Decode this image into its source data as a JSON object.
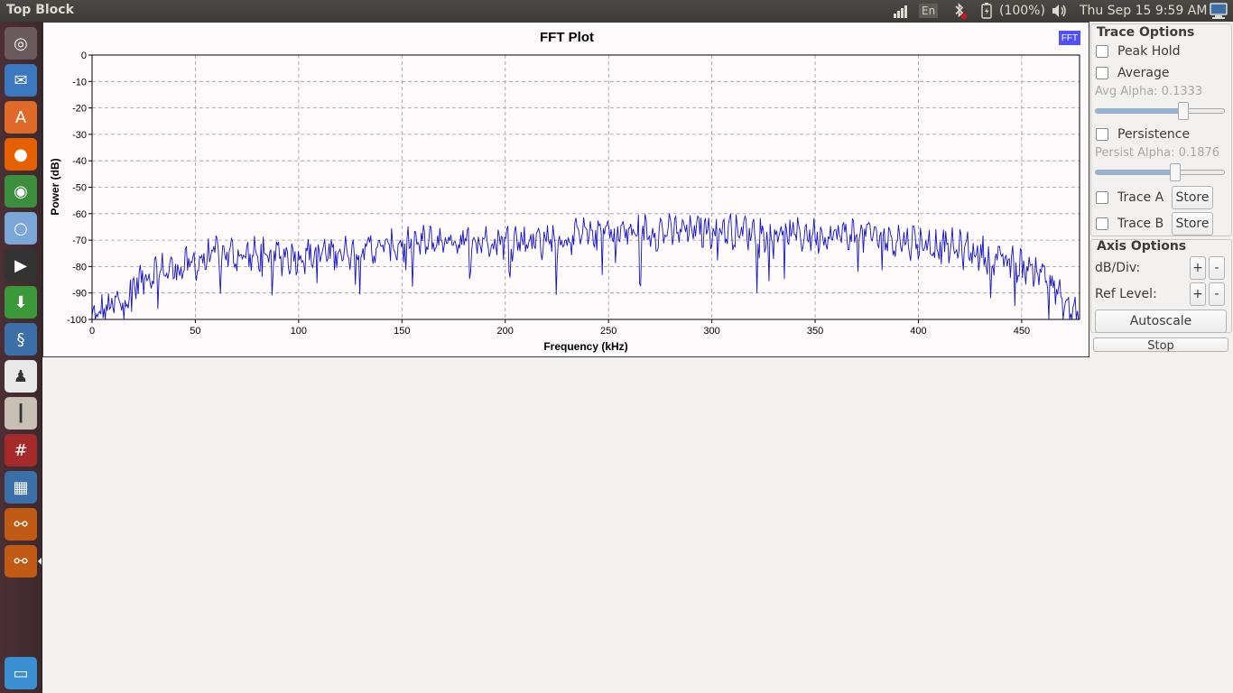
{
  "panel": {
    "window_title": "Top Block",
    "keyboard_layout": "En",
    "battery": "(100%)",
    "datetime": "Thu Sep 15  9:59 AM"
  },
  "launcher": {
    "items": [
      {
        "name": "dash-home",
        "icon": "ubuntu-logo-icon",
        "color": "#6b5a5d"
      },
      {
        "name": "thunderbird",
        "icon": "mail-icon",
        "color": "#3b78c0"
      },
      {
        "name": "software-center",
        "icon": "shopping-bag-icon",
        "color": "#e06a2a"
      },
      {
        "name": "firefox",
        "icon": "firefox-icon",
        "color": "#e66000"
      },
      {
        "name": "chrome",
        "icon": "chrome-icon",
        "color": "#3b8e3b"
      },
      {
        "name": "chromium",
        "icon": "chromium-icon",
        "color": "#7ba6d8"
      },
      {
        "name": "video-player",
        "icon": "video-icon",
        "color": "#333333"
      },
      {
        "name": "downloader",
        "icon": "download-icon",
        "color": "#3a9a3a"
      },
      {
        "name": "python",
        "icon": "python-icon",
        "color": "#3a6fa8"
      },
      {
        "name": "gnuradio",
        "icon": "penguin-icon",
        "color": "#e8e8e8"
      },
      {
        "name": "mixer",
        "icon": "mixer-icon",
        "color": "#c9c0b5"
      },
      {
        "name": "terminal",
        "icon": "terminal-icon",
        "color": "#a62a2a"
      },
      {
        "name": "calculator",
        "icon": "calculator-icon",
        "color": "#3a6fa8"
      },
      {
        "name": "gnuradio-companion-1",
        "icon": "flowgraph-icon",
        "color": "#c05a14"
      },
      {
        "name": "gnuradio-companion-2",
        "icon": "flowgraph-icon",
        "color": "#c05a14"
      },
      {
        "name": "trash",
        "icon": "trash-icon",
        "color": "#3a8fd0"
      }
    ]
  },
  "trace_options": {
    "title": "Trace Options",
    "peak_hold": "Peak Hold",
    "average": "Average",
    "avg_alpha": "Avg Alpha: 0.1333",
    "avg_alpha_value": 0.68,
    "persistence": "Persistence",
    "persist_alpha": "Persist Alpha: 0.1876",
    "persist_alpha_value": 0.62,
    "trace_a": "Trace A",
    "trace_b": "Trace B",
    "store": "Store"
  },
  "axis_options": {
    "title": "Axis Options",
    "db_div": "dB/Div:",
    "ref_level": "Ref Level:",
    "plus": "+",
    "minus": "-",
    "autoscale": "Autoscale",
    "stop": "Stop"
  },
  "chart_data": {
    "type": "line",
    "title": "FFT Plot",
    "badge": "FFT",
    "xlabel": "Frequency (kHz)",
    "ylabel": "Power (dB)",
    "xlim": [
      0,
      478
    ],
    "ylim": [
      -100,
      0
    ],
    "xticks": [
      0,
      50,
      100,
      150,
      200,
      250,
      300,
      350,
      400,
      450
    ],
    "yticks": [
      0,
      -10,
      -20,
      -30,
      -40,
      -50,
      -60,
      -70,
      -80,
      -90,
      -100
    ],
    "grid": true,
    "line_color": "#1414c8",
    "envelope": [
      [
        0,
        -100
      ],
      [
        5,
        -97
      ],
      [
        10,
        -95
      ],
      [
        15,
        -93
      ],
      [
        20,
        -87
      ],
      [
        30,
        -82
      ],
      [
        40,
        -81
      ],
      [
        50,
        -79
      ],
      [
        60,
        -75
      ],
      [
        75,
        -76
      ],
      [
        90,
        -76
      ],
      [
        100,
        -76
      ],
      [
        125,
        -74
      ],
      [
        150,
        -72
      ],
      [
        175,
        -70
      ],
      [
        200,
        -70
      ],
      [
        225,
        -70
      ],
      [
        250,
        -67
      ],
      [
        275,
        -67
      ],
      [
        300,
        -66
      ],
      [
        325,
        -67
      ],
      [
        350,
        -68
      ],
      [
        375,
        -68
      ],
      [
        400,
        -71
      ],
      [
        425,
        -74
      ],
      [
        445,
        -79
      ],
      [
        460,
        -82
      ],
      [
        465,
        -86
      ],
      [
        470,
        -95
      ],
      [
        478,
        -98
      ]
    ]
  }
}
